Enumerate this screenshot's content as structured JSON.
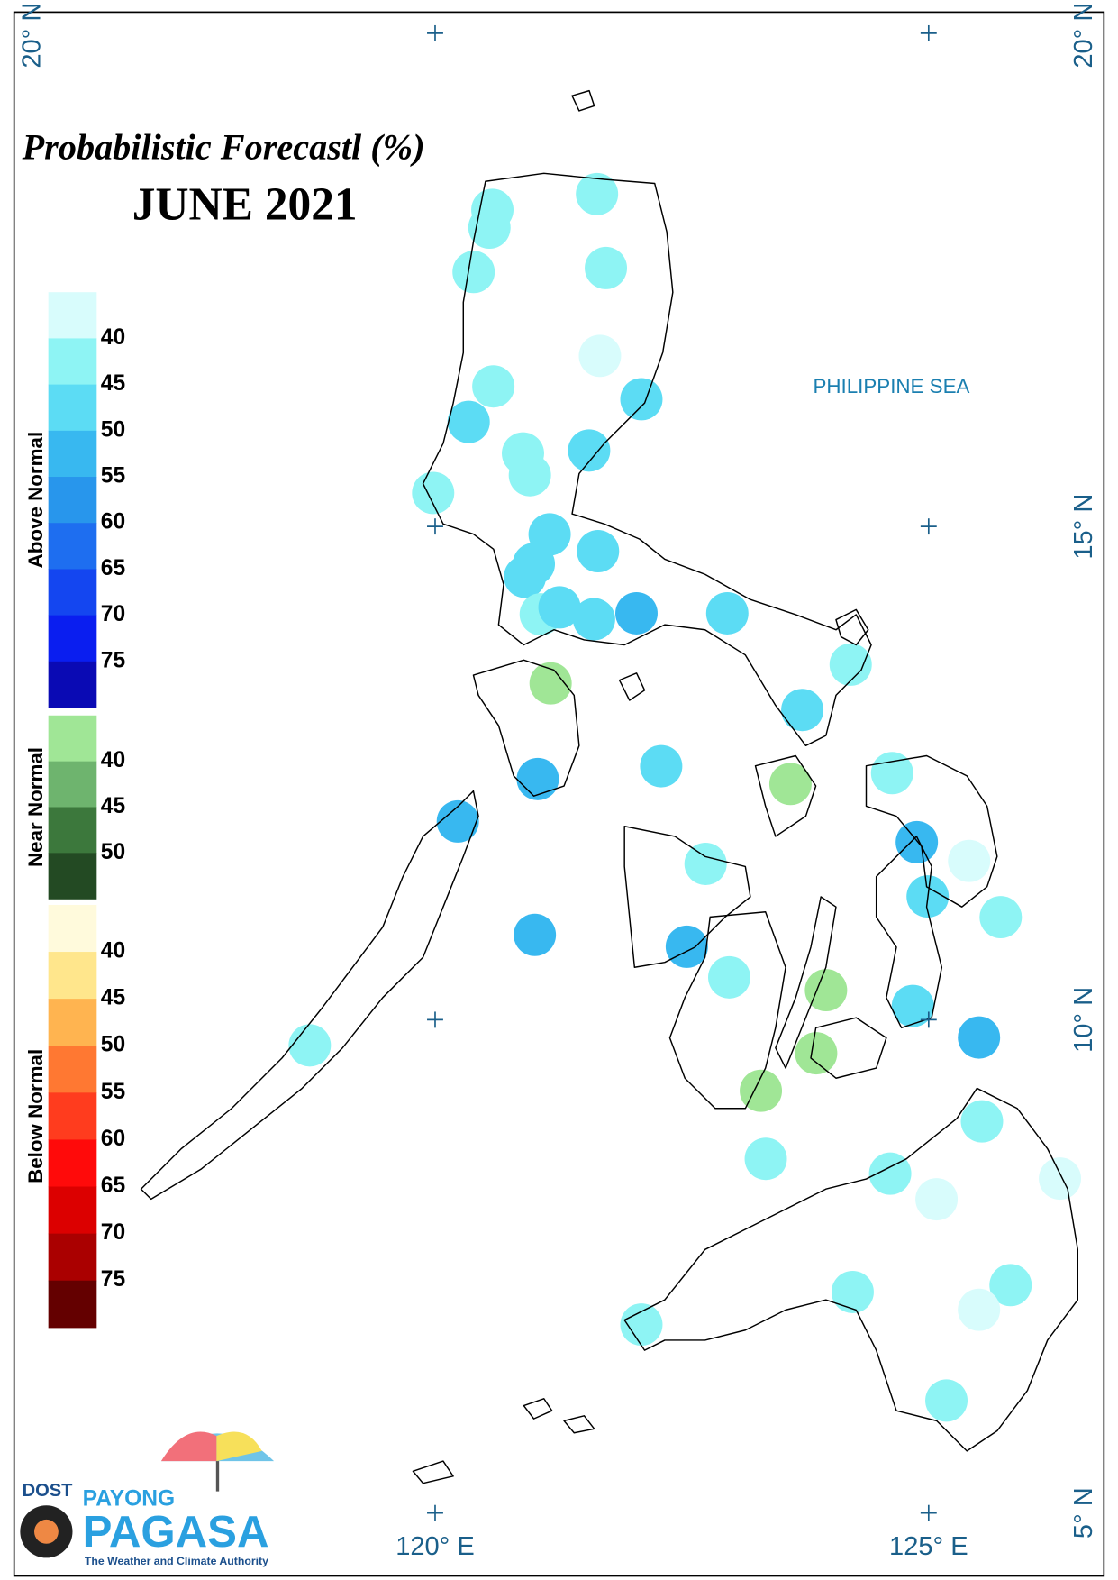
{
  "title": "Probabilistic Forecastl (%)",
  "subtitle": "JUNE 2021",
  "sea_label": "PHILIPPINE SEA",
  "graticule": {
    "lon": [
      {
        "value": 120,
        "label": "120° E"
      },
      {
        "value": 125,
        "label": "125° E"
      }
    ],
    "lat": [
      {
        "value": 20,
        "label": "20° N"
      },
      {
        "value": 15,
        "label": "15° N"
      },
      {
        "value": 10,
        "label": "10° N"
      },
      {
        "value": 5,
        "label": "5° N"
      }
    ],
    "lat_left": [
      {
        "value": 20,
        "label": "20° N"
      }
    ]
  },
  "legend": [
    {
      "name": "Above Normal",
      "colors": [
        "#d8fcfc",
        "#8ef4f4",
        "#5cdcf4",
        "#38b8f0",
        "#2896ec",
        "#1e6ef0",
        "#1446f0",
        "#0a1ef0",
        "#0a0ab4"
      ],
      "ticks": [
        40,
        45,
        50,
        55,
        60,
        65,
        70,
        75
      ]
    },
    {
      "name": "Near Normal",
      "colors": [
        "#a0e696",
        "#6eb46e",
        "#3c783c",
        "#234a23"
      ],
      "ticks": [
        40,
        45,
        50
      ]
    },
    {
      "name": "Below Normal",
      "colors": [
        "#fffadc",
        "#ffe68c",
        "#ffb450",
        "#ff7832",
        "#ff3c1e",
        "#ff0a0a",
        "#dc0000",
        "#aa0000",
        "#640000"
      ],
      "ticks": [
        40,
        45,
        50,
        55,
        60,
        65,
        70,
        75
      ]
    }
  ],
  "stations": [
    {
      "lon": 121.64,
      "lat": 18.37,
      "category": "Above Normal",
      "value": 42
    },
    {
      "lon": 120.58,
      "lat": 18.21,
      "category": "Above Normal",
      "value": 42
    },
    {
      "lon": 120.55,
      "lat": 18.03,
      "category": "Above Normal",
      "value": 42
    },
    {
      "lon": 120.39,
      "lat": 17.58,
      "category": "Above Normal",
      "value": 42
    },
    {
      "lon": 121.73,
      "lat": 17.62,
      "category": "Above Normal",
      "value": 42
    },
    {
      "lon": 121.67,
      "lat": 16.73,
      "category": "Above Normal",
      "value": 37
    },
    {
      "lon": 120.59,
      "lat": 16.42,
      "category": "Above Normal",
      "value": 42
    },
    {
      "lon": 122.09,
      "lat": 16.29,
      "category": "Above Normal",
      "value": 47
    },
    {
      "lon": 120.34,
      "lat": 16.06,
      "category": "Above Normal",
      "value": 47
    },
    {
      "lon": 120.89,
      "lat": 15.74,
      "category": "Above Normal",
      "value": 42
    },
    {
      "lon": 120.96,
      "lat": 15.52,
      "category": "Above Normal",
      "value": 42
    },
    {
      "lon": 121.56,
      "lat": 15.77,
      "category": "Above Normal",
      "value": 47
    },
    {
      "lon": 119.98,
      "lat": 15.34,
      "category": "Above Normal",
      "value": 42
    },
    {
      "lon": 121.16,
      "lat": 14.92,
      "category": "Above Normal",
      "value": 47
    },
    {
      "lon": 121.65,
      "lat": 14.75,
      "category": "Above Normal",
      "value": 47
    },
    {
      "lon": 121.0,
      "lat": 14.62,
      "category": "Above Normal",
      "value": 47
    },
    {
      "lon": 120.91,
      "lat": 14.49,
      "category": "Above Normal",
      "value": 47
    },
    {
      "lon": 121.07,
      "lat": 14.11,
      "category": "Above Normal",
      "value": 42
    },
    {
      "lon": 121.26,
      "lat": 14.18,
      "category": "Above Normal",
      "value": 47
    },
    {
      "lon": 121.61,
      "lat": 14.06,
      "category": "Above Normal",
      "value": 47
    },
    {
      "lon": 122.04,
      "lat": 14.12,
      "category": "Above Normal",
      "value": 52
    },
    {
      "lon": 122.96,
      "lat": 14.12,
      "category": "Above Normal",
      "value": 47
    },
    {
      "lon": 124.21,
      "lat": 13.6,
      "category": "Above Normal",
      "value": 42
    },
    {
      "lon": 121.17,
      "lat": 13.41,
      "category": "Near Normal",
      "value": 38
    },
    {
      "lon": 123.72,
      "lat": 13.14,
      "category": "Above Normal",
      "value": 47
    },
    {
      "lon": 121.04,
      "lat": 12.44,
      "category": "Above Normal",
      "value": 52
    },
    {
      "lon": 122.29,
      "lat": 12.57,
      "category": "Above Normal",
      "value": 47
    },
    {
      "lon": 123.6,
      "lat": 12.39,
      "category": "Near Normal",
      "value": 38
    },
    {
      "lon": 124.63,
      "lat": 12.5,
      "category": "Above Normal",
      "value": 42
    },
    {
      "lon": 120.23,
      "lat": 12.01,
      "category": "Above Normal",
      "value": 52
    },
    {
      "lon": 124.88,
      "lat": 11.8,
      "category": "Above Normal",
      "value": 52
    },
    {
      "lon": 125.41,
      "lat": 11.61,
      "category": "Above Normal",
      "value": 37
    },
    {
      "lon": 122.74,
      "lat": 11.58,
      "category": "Above Normal",
      "value": 42
    },
    {
      "lon": 124.99,
      "lat": 11.25,
      "category": "Above Normal",
      "value": 47
    },
    {
      "lon": 125.73,
      "lat": 11.04,
      "category": "Above Normal",
      "value": 42
    },
    {
      "lon": 121.01,
      "lat": 10.86,
      "category": "Above Normal",
      "value": 52
    },
    {
      "lon": 122.55,
      "lat": 10.74,
      "category": "Above Normal",
      "value": 52
    },
    {
      "lon": 122.98,
      "lat": 10.43,
      "category": "Above Normal",
      "value": 42
    },
    {
      "lon": 123.96,
      "lat": 10.3,
      "category": "Near Normal",
      "value": 38
    },
    {
      "lon": 124.84,
      "lat": 10.14,
      "category": "Above Normal",
      "value": 47
    },
    {
      "lon": 125.51,
      "lat": 9.82,
      "category": "Above Normal",
      "value": 52
    },
    {
      "lon": 123.86,
      "lat": 9.66,
      "category": "Near Normal",
      "value": 38
    },
    {
      "lon": 118.73,
      "lat": 9.74,
      "category": "Above Normal",
      "value": 42
    },
    {
      "lon": 123.3,
      "lat": 9.28,
      "category": "Near Normal",
      "value": 38
    },
    {
      "lon": 125.54,
      "lat": 8.97,
      "category": "Above Normal",
      "value": 42
    },
    {
      "lon": 123.35,
      "lat": 8.59,
      "category": "Above Normal",
      "value": 42
    },
    {
      "lon": 124.61,
      "lat": 8.44,
      "category": "Above Normal",
      "value": 42
    },
    {
      "lon": 125.08,
      "lat": 8.18,
      "category": "Above Normal",
      "value": 37
    },
    {
      "lon": 126.33,
      "lat": 8.39,
      "category": "Above Normal",
      "value": 37
    },
    {
      "lon": 124.23,
      "lat": 7.24,
      "category": "Above Normal",
      "value": 42
    },
    {
      "lon": 125.83,
      "lat": 7.31,
      "category": "Above Normal",
      "value": 42
    },
    {
      "lon": 125.51,
      "lat": 7.06,
      "category": "Above Normal",
      "value": 37
    },
    {
      "lon": 122.09,
      "lat": 6.91,
      "category": "Above Normal",
      "value": 42
    },
    {
      "lon": 125.18,
      "lat": 6.14,
      "category": "Above Normal",
      "value": 42
    }
  ],
  "logo": {
    "agency": "DOST",
    "brand_top": "PAYONG",
    "brand": "PAGASA",
    "tagline": "The Weather and Climate Authority"
  }
}
